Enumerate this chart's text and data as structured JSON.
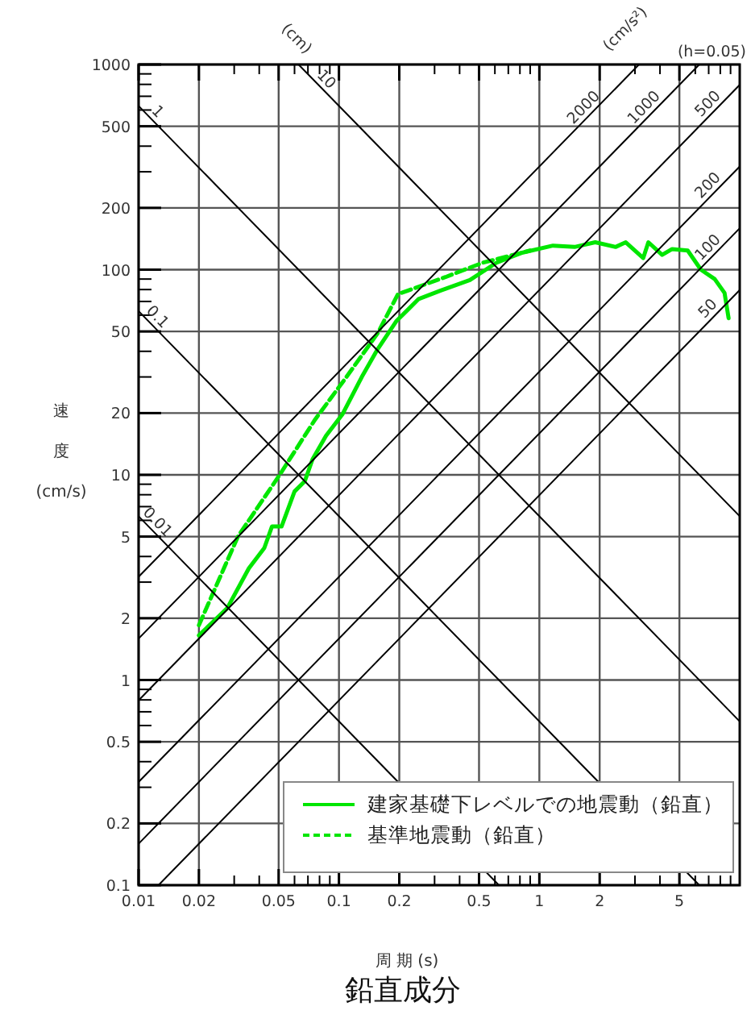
{
  "chart_data": {
    "type": "line",
    "title": "鉛直成分",
    "xlabel": "周 期 (s)",
    "ylabel": "速度(cm/s)",
    "log": "xy",
    "xlim": [
      0.01,
      10
    ],
    "ylim": [
      0.1,
      1000
    ],
    "xticks": [
      0.01,
      0.02,
      0.05,
      0.1,
      0.2,
      0.5,
      1,
      2,
      5
    ],
    "yticks": [
      0.1,
      0.2,
      0.5,
      1,
      2,
      5,
      10,
      20,
      50,
      100,
      200,
      500,
      1000
    ],
    "grid": true,
    "legend": "bottom right",
    "series": [
      {
        "name": "建家基礎下レベルでの地震動（鉛直）",
        "color": "#00e600",
        "line_style": "solid",
        "x": [
          0.02,
          0.0277,
          0.0355,
          0.0424,
          0.0463,
          0.0517,
          0.06,
          0.0675,
          0.0738,
          0.0862,
          0.104,
          0.13,
          0.156,
          0.193,
          0.25,
          0.32,
          0.45,
          0.61,
          0.82,
          1.17,
          1.5,
          1.9,
          2.4,
          2.7,
          3.3,
          3.5,
          4.1,
          4.6,
          5.5,
          6.4,
          7.5,
          8.4,
          8.8
        ],
        "values": [
          1.65,
          2.24,
          3.5,
          4.4,
          5.6,
          5.6,
          8.3,
          9.3,
          11.9,
          15.5,
          19.7,
          30,
          41,
          56,
          72,
          79,
          89,
          108,
          121,
          131,
          129,
          136,
          129,
          136,
          114,
          136,
          118,
          126,
          124,
          100,
          90,
          77,
          58
        ]
      },
      {
        "name": "基準地震動（鉛直）",
        "color": "#00e600",
        "line_style": "dashed",
        "x": [
          0.02,
          0.0313,
          0.0506,
          0.076,
          0.109,
          0.156,
          0.197,
          0.22,
          0.34,
          0.52,
          0.82,
          0.9
        ],
        "values": [
          1.85,
          5.0,
          10,
          18.6,
          30,
          49,
          76,
          79,
          92,
          108,
          121,
          124
        ]
      },
      {
        "color": "#000000",
        "x": [
          0.01,
          10
        ],
        "values": [
          628.3,
          0.6283
        ]
      },
      {
        "color": "#000000",
        "x": [
          0.06283,
          10
        ],
        "values": [
          1000,
          6.283
        ]
      },
      {
        "color": "#000000",
        "x": [
          0.01,
          6.283
        ],
        "values": [
          62.83,
          0.1
        ]
      },
      {
        "color": "#000000",
        "x": [
          0.01,
          0.6283
        ],
        "values": [
          6.283,
          0.1
        ]
      },
      {
        "color": "#000000",
        "x": [
          0.01,
          3.142
        ],
        "values": [
          3.183,
          1000
        ]
      },
      {
        "color": "#000000",
        "x": [
          0.01,
          6.283
        ],
        "values": [
          1.592,
          1000
        ]
      },
      {
        "color": "#000000",
        "x": [
          0.01,
          10
        ],
        "values": [
          0.7958,
          795.8
        ]
      },
      {
        "color": "#000000",
        "x": [
          0.01,
          10
        ],
        "values": [
          0.3183,
          318.3
        ]
      },
      {
        "color": "#000000",
        "x": [
          0.01,
          10
        ],
        "values": [
          0.1592,
          159.2
        ]
      },
      {
        "color": "#000000",
        "x": [
          0.01257,
          10
        ],
        "values": [
          0.1,
          79.58
        ]
      }
    ],
    "annotations": [
      "(cm)",
      "(cm/s²)",
      "(h=0.05)",
      {
        "text": "1",
        "x": 0.0115,
        "y": 546
      },
      {
        "text": "10",
        "x": 0.08,
        "y": 785
      },
      {
        "text": "0.1",
        "x": 0.0115,
        "y": 54.6
      },
      {
        "text": "0.01",
        "x": 0.0115,
        "y": 5.46
      },
      {
        "text": "2000",
        "x": 1.8,
        "y": 573
      },
      {
        "text": "1000",
        "x": 3.6,
        "y": 573
      },
      {
        "text": "500",
        "x": 7.5,
        "y": 597
      },
      {
        "text": "200",
        "x": 7.5,
        "y": 239
      },
      {
        "text": "100",
        "x": 7.5,
        "y": 119
      },
      {
        "text": "50",
        "x": 7.5,
        "y": 60
      }
    ]
  }
}
